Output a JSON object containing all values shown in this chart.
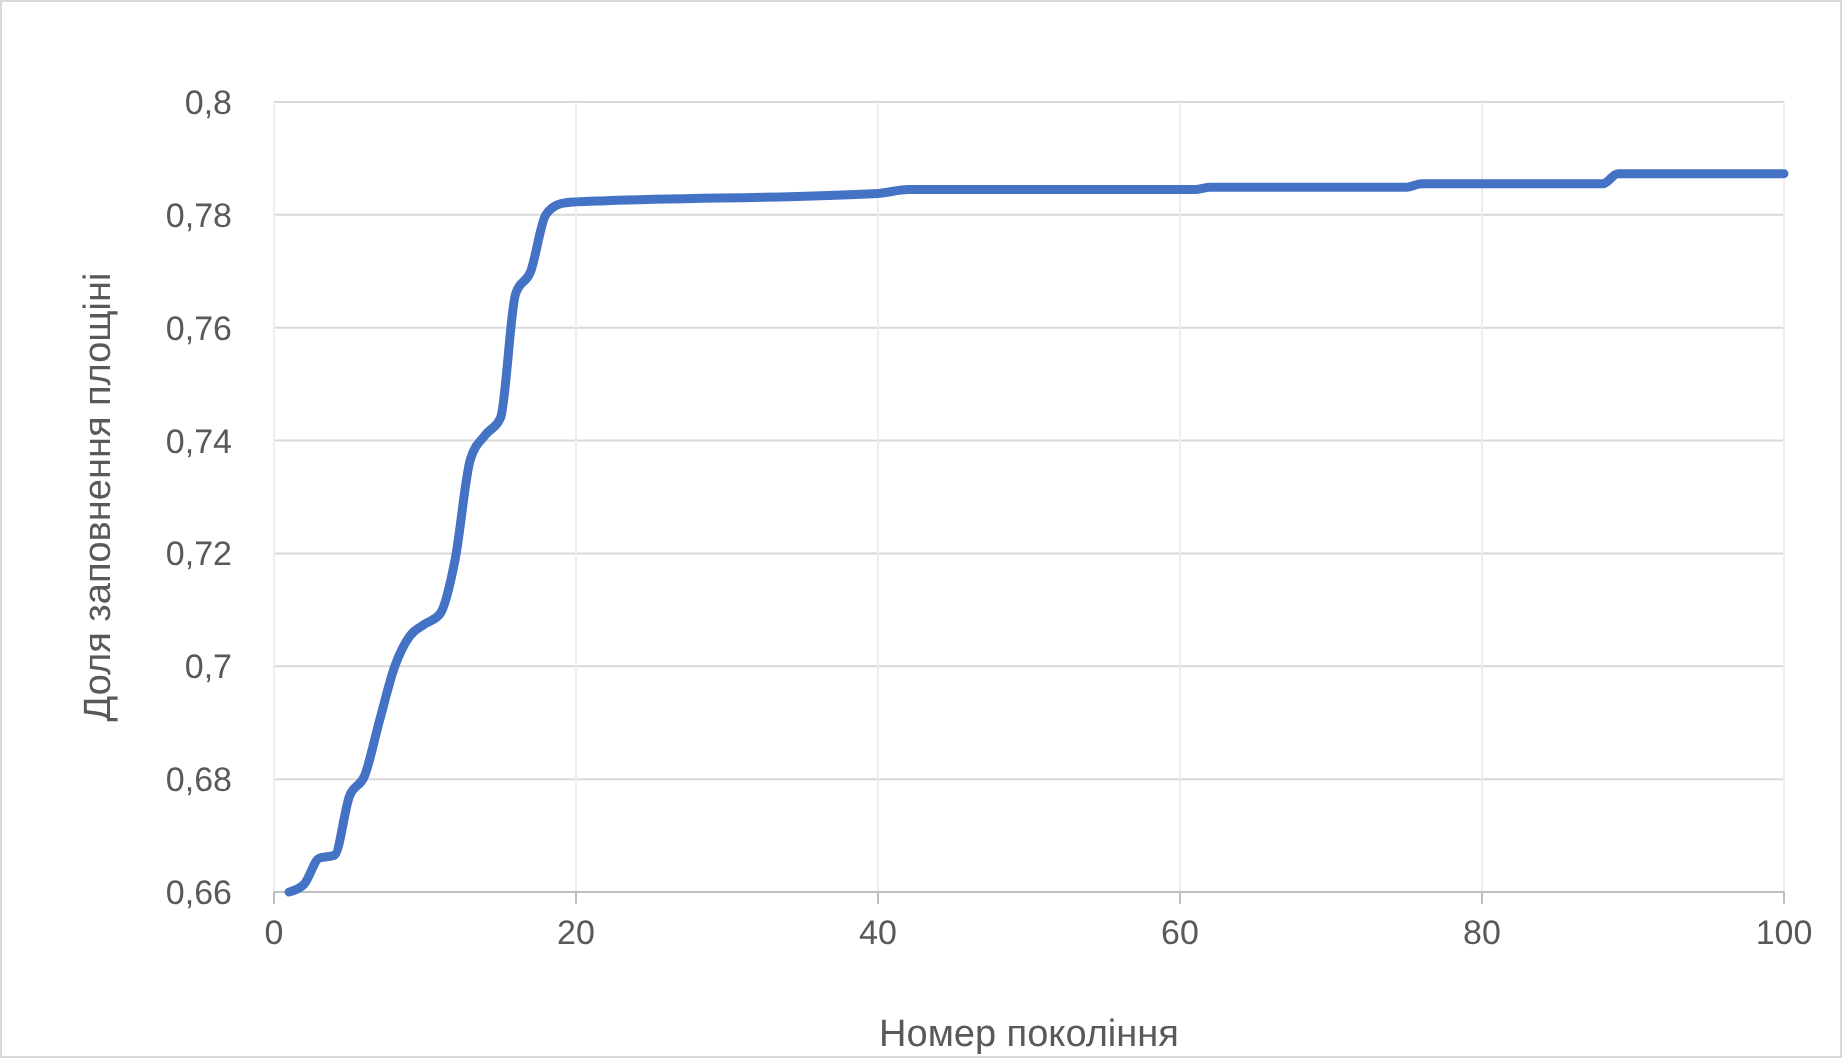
{
  "chart_data": {
    "type": "line",
    "xlabel": "Номер покоління",
    "ylabel": "Доля заповнення площіні",
    "series": [
      {
        "color": "#4472c4",
        "x": [
          1,
          2,
          3,
          4,
          5,
          6,
          7,
          8,
          9,
          10,
          11,
          12,
          13,
          14,
          15,
          16,
          17,
          18,
          19,
          20,
          22,
          40,
          42,
          61,
          62,
          75,
          76,
          88,
          89,
          100
        ],
        "values": [
          0.66,
          0.6614,
          0.666,
          0.6665,
          0.677,
          0.6806,
          0.6905,
          0.7,
          0.7054,
          0.7075,
          0.7093,
          0.719,
          0.7366,
          0.741,
          0.744,
          0.766,
          0.77,
          0.78,
          0.782,
          0.7823,
          0.7825,
          0.7838,
          0.7845,
          0.7845,
          0.7849,
          0.7849,
          0.7855,
          0.7855,
          0.7873,
          0.7873
        ]
      }
    ],
    "xlim": [
      0,
      100
    ],
    "xticks": [
      0,
      20,
      40,
      60,
      80,
      100
    ],
    "ylim": [
      0.66,
      0.8
    ],
    "yticks": [
      {
        "value": 0.66,
        "label": "0,66"
      },
      {
        "value": 0.68,
        "label": "0,68"
      },
      {
        "value": 0.7,
        "label": "0,7"
      },
      {
        "value": 0.72,
        "label": "0,72"
      },
      {
        "value": 0.74,
        "label": "0,74"
      },
      {
        "value": 0.76,
        "label": "0,76"
      },
      {
        "value": 0.78,
        "label": "0,78"
      },
      {
        "value": 0.8,
        "label": "0,8"
      }
    ],
    "grid": true,
    "marker": "none",
    "line_style": "solid"
  }
}
